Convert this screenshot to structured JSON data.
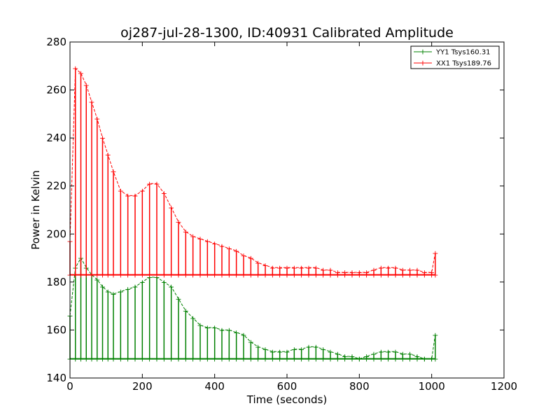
{
  "chart_data": {
    "type": "line",
    "title": "oj287-jul-28-1300, ID:40931 Calibrated Amplitude",
    "xlabel": "Time (seconds)",
    "ylabel": "Power in Kelvin",
    "xlim": [
      0,
      1200
    ],
    "ylim": [
      140,
      280
    ],
    "xticks": [
      0,
      200,
      400,
      600,
      800,
      1000,
      1200
    ],
    "yticks": [
      140,
      160,
      180,
      200,
      220,
      240,
      260,
      280
    ],
    "grid": false,
    "legend_position": "top-right",
    "marker": "plus",
    "series": [
      {
        "name": "YY1 Tsys160.31",
        "color": "#008000",
        "baseline": 148,
        "x": [
          0,
          15,
          30,
          45,
          60,
          75,
          90,
          105,
          120,
          140,
          160,
          180,
          200,
          220,
          240,
          260,
          280,
          300,
          320,
          340,
          360,
          380,
          400,
          420,
          440,
          460,
          480,
          500,
          520,
          540,
          560,
          580,
          600,
          620,
          640,
          660,
          680,
          700,
          720,
          740,
          760,
          780,
          800,
          820,
          840,
          860,
          880,
          900,
          920,
          940,
          960,
          980,
          1000,
          1010
        ],
        "peak": [
          166,
          186,
          190,
          186,
          183,
          181,
          178,
          176,
          175,
          176,
          177,
          178,
          180,
          182,
          182,
          180,
          178,
          173,
          168,
          165,
          162,
          161,
          161,
          160,
          160,
          159,
          158,
          155,
          153,
          152,
          151,
          151,
          151,
          152,
          152,
          153,
          153,
          152,
          151,
          150,
          149,
          149,
          148,
          149,
          150,
          151,
          151,
          151,
          150,
          150,
          149,
          148,
          148,
          158
        ]
      },
      {
        "name": "XX1 Tsys189.76",
        "color": "#ff0000",
        "baseline": 183,
        "x": [
          0,
          15,
          30,
          45,
          60,
          75,
          90,
          105,
          120,
          140,
          160,
          180,
          200,
          220,
          240,
          260,
          280,
          300,
          320,
          340,
          360,
          380,
          400,
          420,
          440,
          460,
          480,
          500,
          520,
          540,
          560,
          580,
          600,
          620,
          640,
          660,
          680,
          700,
          720,
          740,
          760,
          780,
          800,
          820,
          840,
          860,
          880,
          900,
          920,
          940,
          960,
          980,
          1000,
          1010
        ],
        "peak": [
          197,
          269,
          267,
          262,
          255,
          248,
          240,
          233,
          226,
          218,
          216,
          216,
          218,
          221,
          221,
          217,
          211,
          205,
          201,
          199,
          198,
          197,
          196,
          195,
          194,
          193,
          191,
          190,
          188,
          187,
          186,
          186,
          186,
          186,
          186,
          186,
          186,
          185,
          185,
          184,
          184,
          184,
          184,
          184,
          185,
          186,
          186,
          186,
          185,
          185,
          185,
          184,
          184,
          192
        ]
      }
    ]
  }
}
